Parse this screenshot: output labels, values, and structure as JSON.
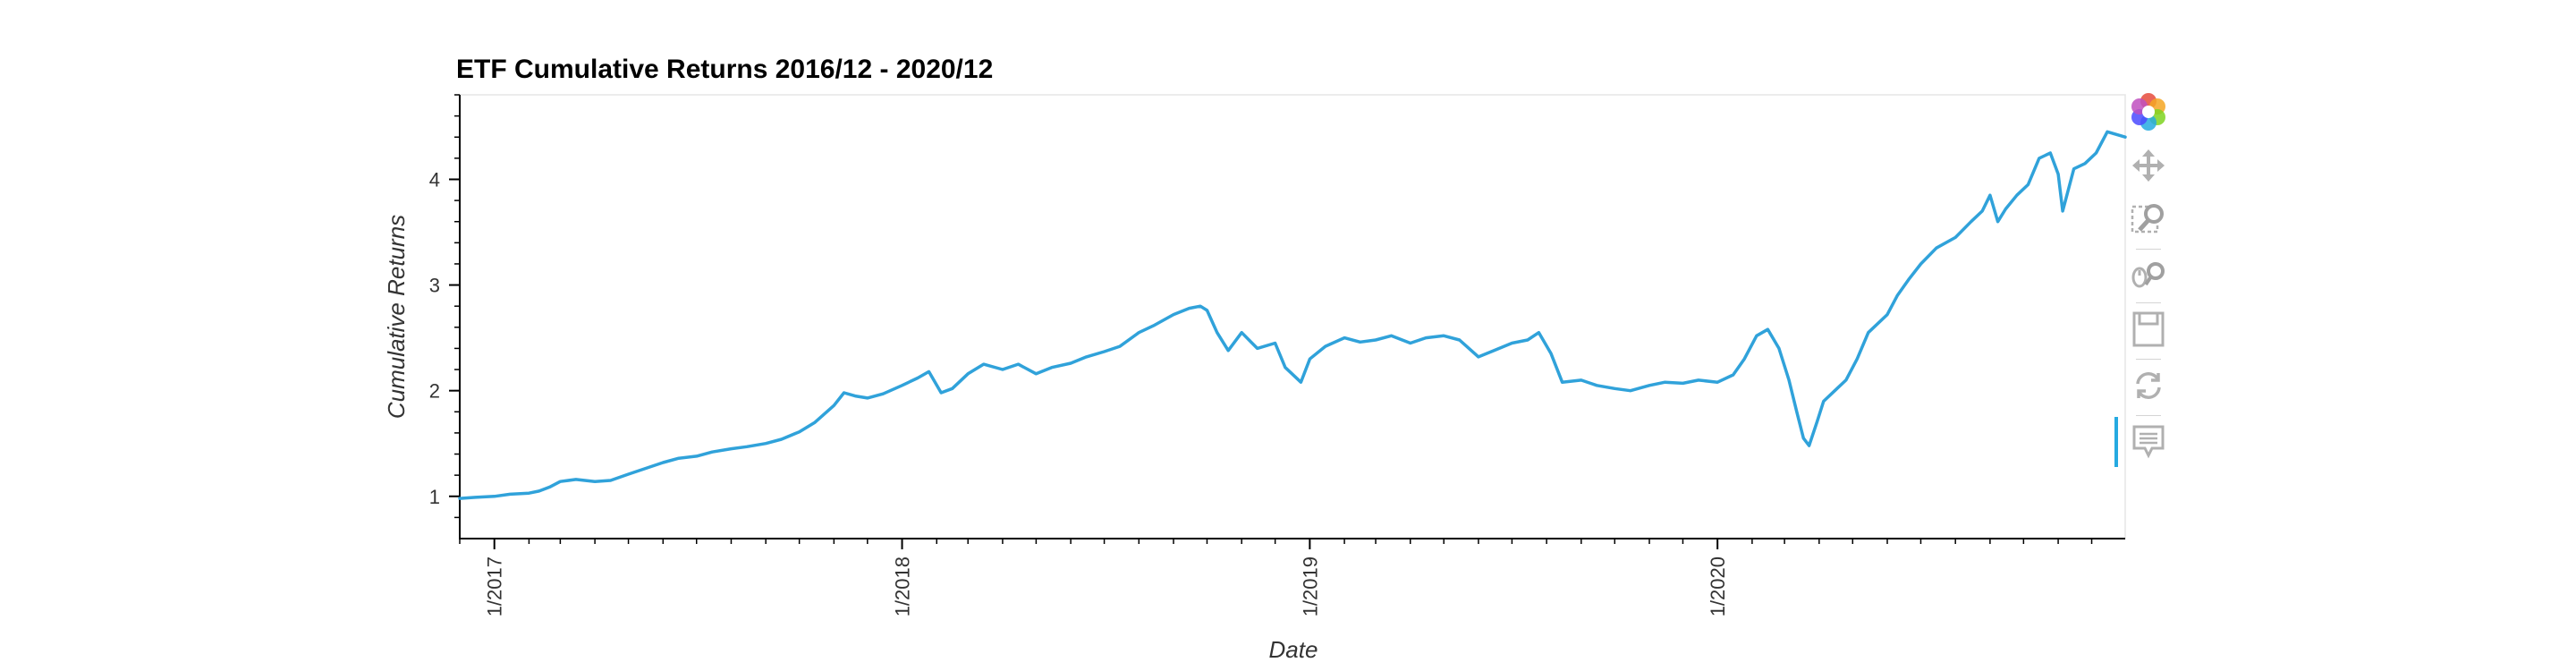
{
  "chart_data": {
    "type": "line",
    "title": "ETF Cumulative Returns 2016/12 - 2020/12",
    "xlabel": "Date",
    "ylabel": "Cumulative Returns",
    "x_range": [
      "2016-12-01",
      "2020-12-31"
    ],
    "ylim": [
      0.6,
      4.8
    ],
    "y_ticks": [
      1,
      2,
      3,
      4
    ],
    "x_ticks": [
      "1/2017",
      "1/2018",
      "1/2019",
      "1/2020"
    ],
    "grid": false,
    "color": "#30a2da",
    "series": [
      {
        "x": [
          "2016-12-01",
          "2016-12-15",
          "2017-01-01",
          "2017-01-15",
          "2017-02-01",
          "2017-02-10",
          "2017-02-20",
          "2017-03-01",
          "2017-03-15",
          "2017-04-01",
          "2017-04-15",
          "2017-05-01",
          "2017-05-15",
          "2017-06-01",
          "2017-06-15",
          "2017-07-01",
          "2017-07-15",
          "2017-08-01",
          "2017-08-15",
          "2017-09-01",
          "2017-09-15",
          "2017-10-01",
          "2017-10-15",
          "2017-11-01",
          "2017-11-10",
          "2017-11-20",
          "2017-12-01",
          "2017-12-15",
          "2018-01-01",
          "2018-01-15",
          "2018-01-25",
          "2018-02-05",
          "2018-02-15",
          "2018-03-01",
          "2018-03-15",
          "2018-04-01",
          "2018-04-15",
          "2018-05-01",
          "2018-05-15",
          "2018-06-01",
          "2018-06-15",
          "2018-07-01",
          "2018-07-15",
          "2018-08-01",
          "2018-08-15",
          "2018-09-01",
          "2018-09-15",
          "2018-09-25",
          "2018-10-01",
          "2018-10-10",
          "2018-10-20",
          "2018-11-01",
          "2018-11-15",
          "2018-12-01",
          "2018-12-10",
          "2018-12-24",
          "2019-01-01",
          "2019-01-15",
          "2019-02-01",
          "2019-02-15",
          "2019-03-01",
          "2019-03-15",
          "2019-04-01",
          "2019-04-15",
          "2019-05-01",
          "2019-05-15",
          "2019-06-01",
          "2019-06-15",
          "2019-07-01",
          "2019-07-15",
          "2019-07-25",
          "2019-08-05",
          "2019-08-15",
          "2019-09-01",
          "2019-09-15",
          "2019-10-01",
          "2019-10-15",
          "2019-11-01",
          "2019-11-15",
          "2019-12-01",
          "2019-12-15",
          "2020-01-01",
          "2020-01-15",
          "2020-01-25",
          "2020-02-05",
          "2020-02-15",
          "2020-02-25",
          "2020-03-05",
          "2020-03-12",
          "2020-03-18",
          "2020-03-23",
          "2020-03-30",
          "2020-04-05",
          "2020-04-15",
          "2020-04-25",
          "2020-05-05",
          "2020-05-15",
          "2020-06-01",
          "2020-06-10",
          "2020-06-20",
          "2020-07-01",
          "2020-07-15",
          "2020-08-01",
          "2020-08-15",
          "2020-08-25",
          "2020-09-01",
          "2020-09-08",
          "2020-09-15",
          "2020-09-25",
          "2020-10-05",
          "2020-10-15",
          "2020-10-25",
          "2020-11-01",
          "2020-11-05",
          "2020-11-15",
          "2020-11-25",
          "2020-12-05",
          "2020-12-15",
          "2020-12-31"
        ],
        "y": [
          0.98,
          0.99,
          1.0,
          1.02,
          1.03,
          1.05,
          1.09,
          1.14,
          1.16,
          1.14,
          1.15,
          1.21,
          1.26,
          1.32,
          1.36,
          1.38,
          1.42,
          1.45,
          1.47,
          1.5,
          1.54,
          1.61,
          1.7,
          1.86,
          1.98,
          1.95,
          1.93,
          1.97,
          2.05,
          2.12,
          2.18,
          1.98,
          2.02,
          2.16,
          2.25,
          2.2,
          2.25,
          2.16,
          2.22,
          2.26,
          2.32,
          2.37,
          2.42,
          2.55,
          2.62,
          2.72,
          2.78,
          2.8,
          2.76,
          2.55,
          2.38,
          2.55,
          2.4,
          2.45,
          2.22,
          2.08,
          2.3,
          2.42,
          2.5,
          2.46,
          2.48,
          2.52,
          2.45,
          2.5,
          2.52,
          2.48,
          2.32,
          2.38,
          2.45,
          2.48,
          2.55,
          2.35,
          2.08,
          2.1,
          2.05,
          2.02,
          2.0,
          2.05,
          2.08,
          2.07,
          2.1,
          2.08,
          2.15,
          2.3,
          2.52,
          2.58,
          2.4,
          2.1,
          1.8,
          1.55,
          1.48,
          1.7,
          1.9,
          2.0,
          2.1,
          2.3,
          2.55,
          2.72,
          2.9,
          3.05,
          3.2,
          3.35,
          3.45,
          3.6,
          3.7,
          3.85,
          3.6,
          3.72,
          3.85,
          3.95,
          4.2,
          4.25,
          4.05,
          3.7,
          4.1,
          4.15,
          4.25,
          4.45,
          4.4
        ]
      }
    ]
  },
  "toolbar": {
    "tools": [
      "bokeh-logo-icon",
      "pan-icon",
      "box-zoom-icon",
      "wheel-zoom-icon",
      "save-icon",
      "reset-icon",
      "hover-icon"
    ]
  }
}
